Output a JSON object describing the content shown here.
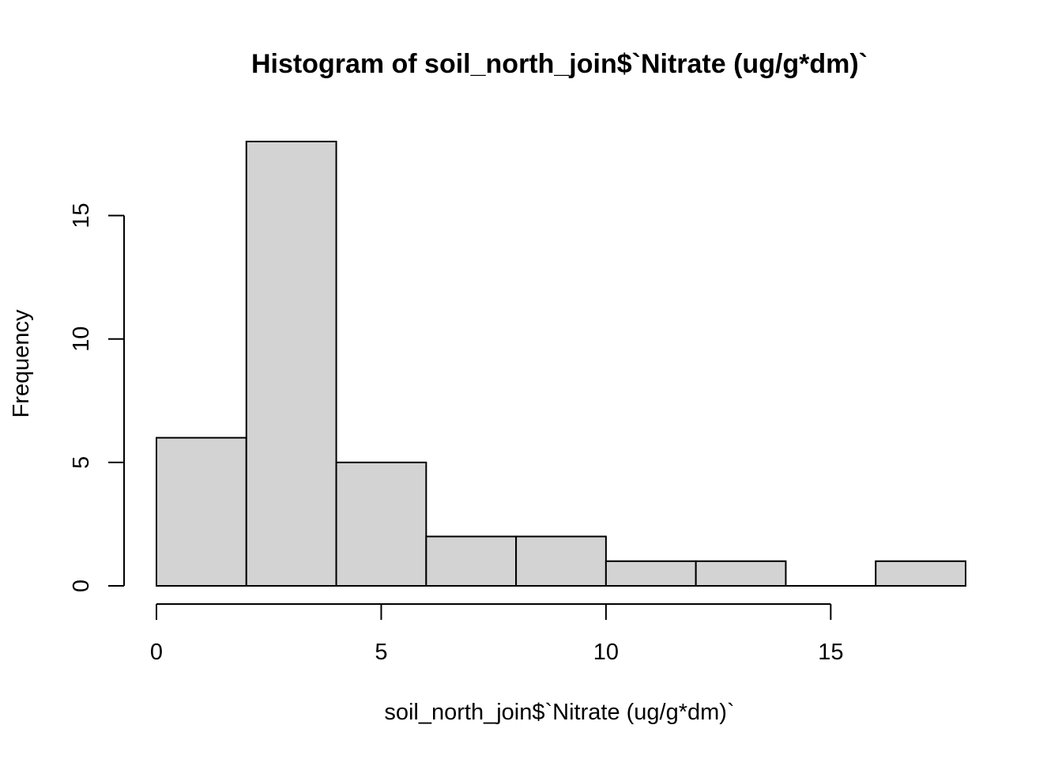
{
  "chart_data": {
    "type": "bar",
    "title": "Histogram of soil_north_join$`Nitrate (ug/g*dm)`",
    "xlabel": "soil_north_join$`Nitrate (ug/g*dm)`",
    "ylabel": "Frequency",
    "bins": [
      {
        "x0": 0,
        "x1": 2,
        "count": 6
      },
      {
        "x0": 2,
        "x1": 4,
        "count": 18
      },
      {
        "x0": 4,
        "x1": 6,
        "count": 5
      },
      {
        "x0": 6,
        "x1": 8,
        "count": 2
      },
      {
        "x0": 8,
        "x1": 10,
        "count": 2
      },
      {
        "x0": 10,
        "x1": 12,
        "count": 1
      },
      {
        "x0": 12,
        "x1": 14,
        "count": 1
      },
      {
        "x0": 14,
        "x1": 16,
        "count": 0
      },
      {
        "x0": 16,
        "x1": 18,
        "count": 1
      }
    ],
    "x_ticks": [
      "0",
      "5",
      "10",
      "15"
    ],
    "y_ticks": [
      "0",
      "5",
      "10",
      "15"
    ],
    "xlim": [
      0,
      18
    ],
    "ylim": [
      0,
      18
    ],
    "grid": false,
    "bar_color": "#d3d3d3"
  }
}
